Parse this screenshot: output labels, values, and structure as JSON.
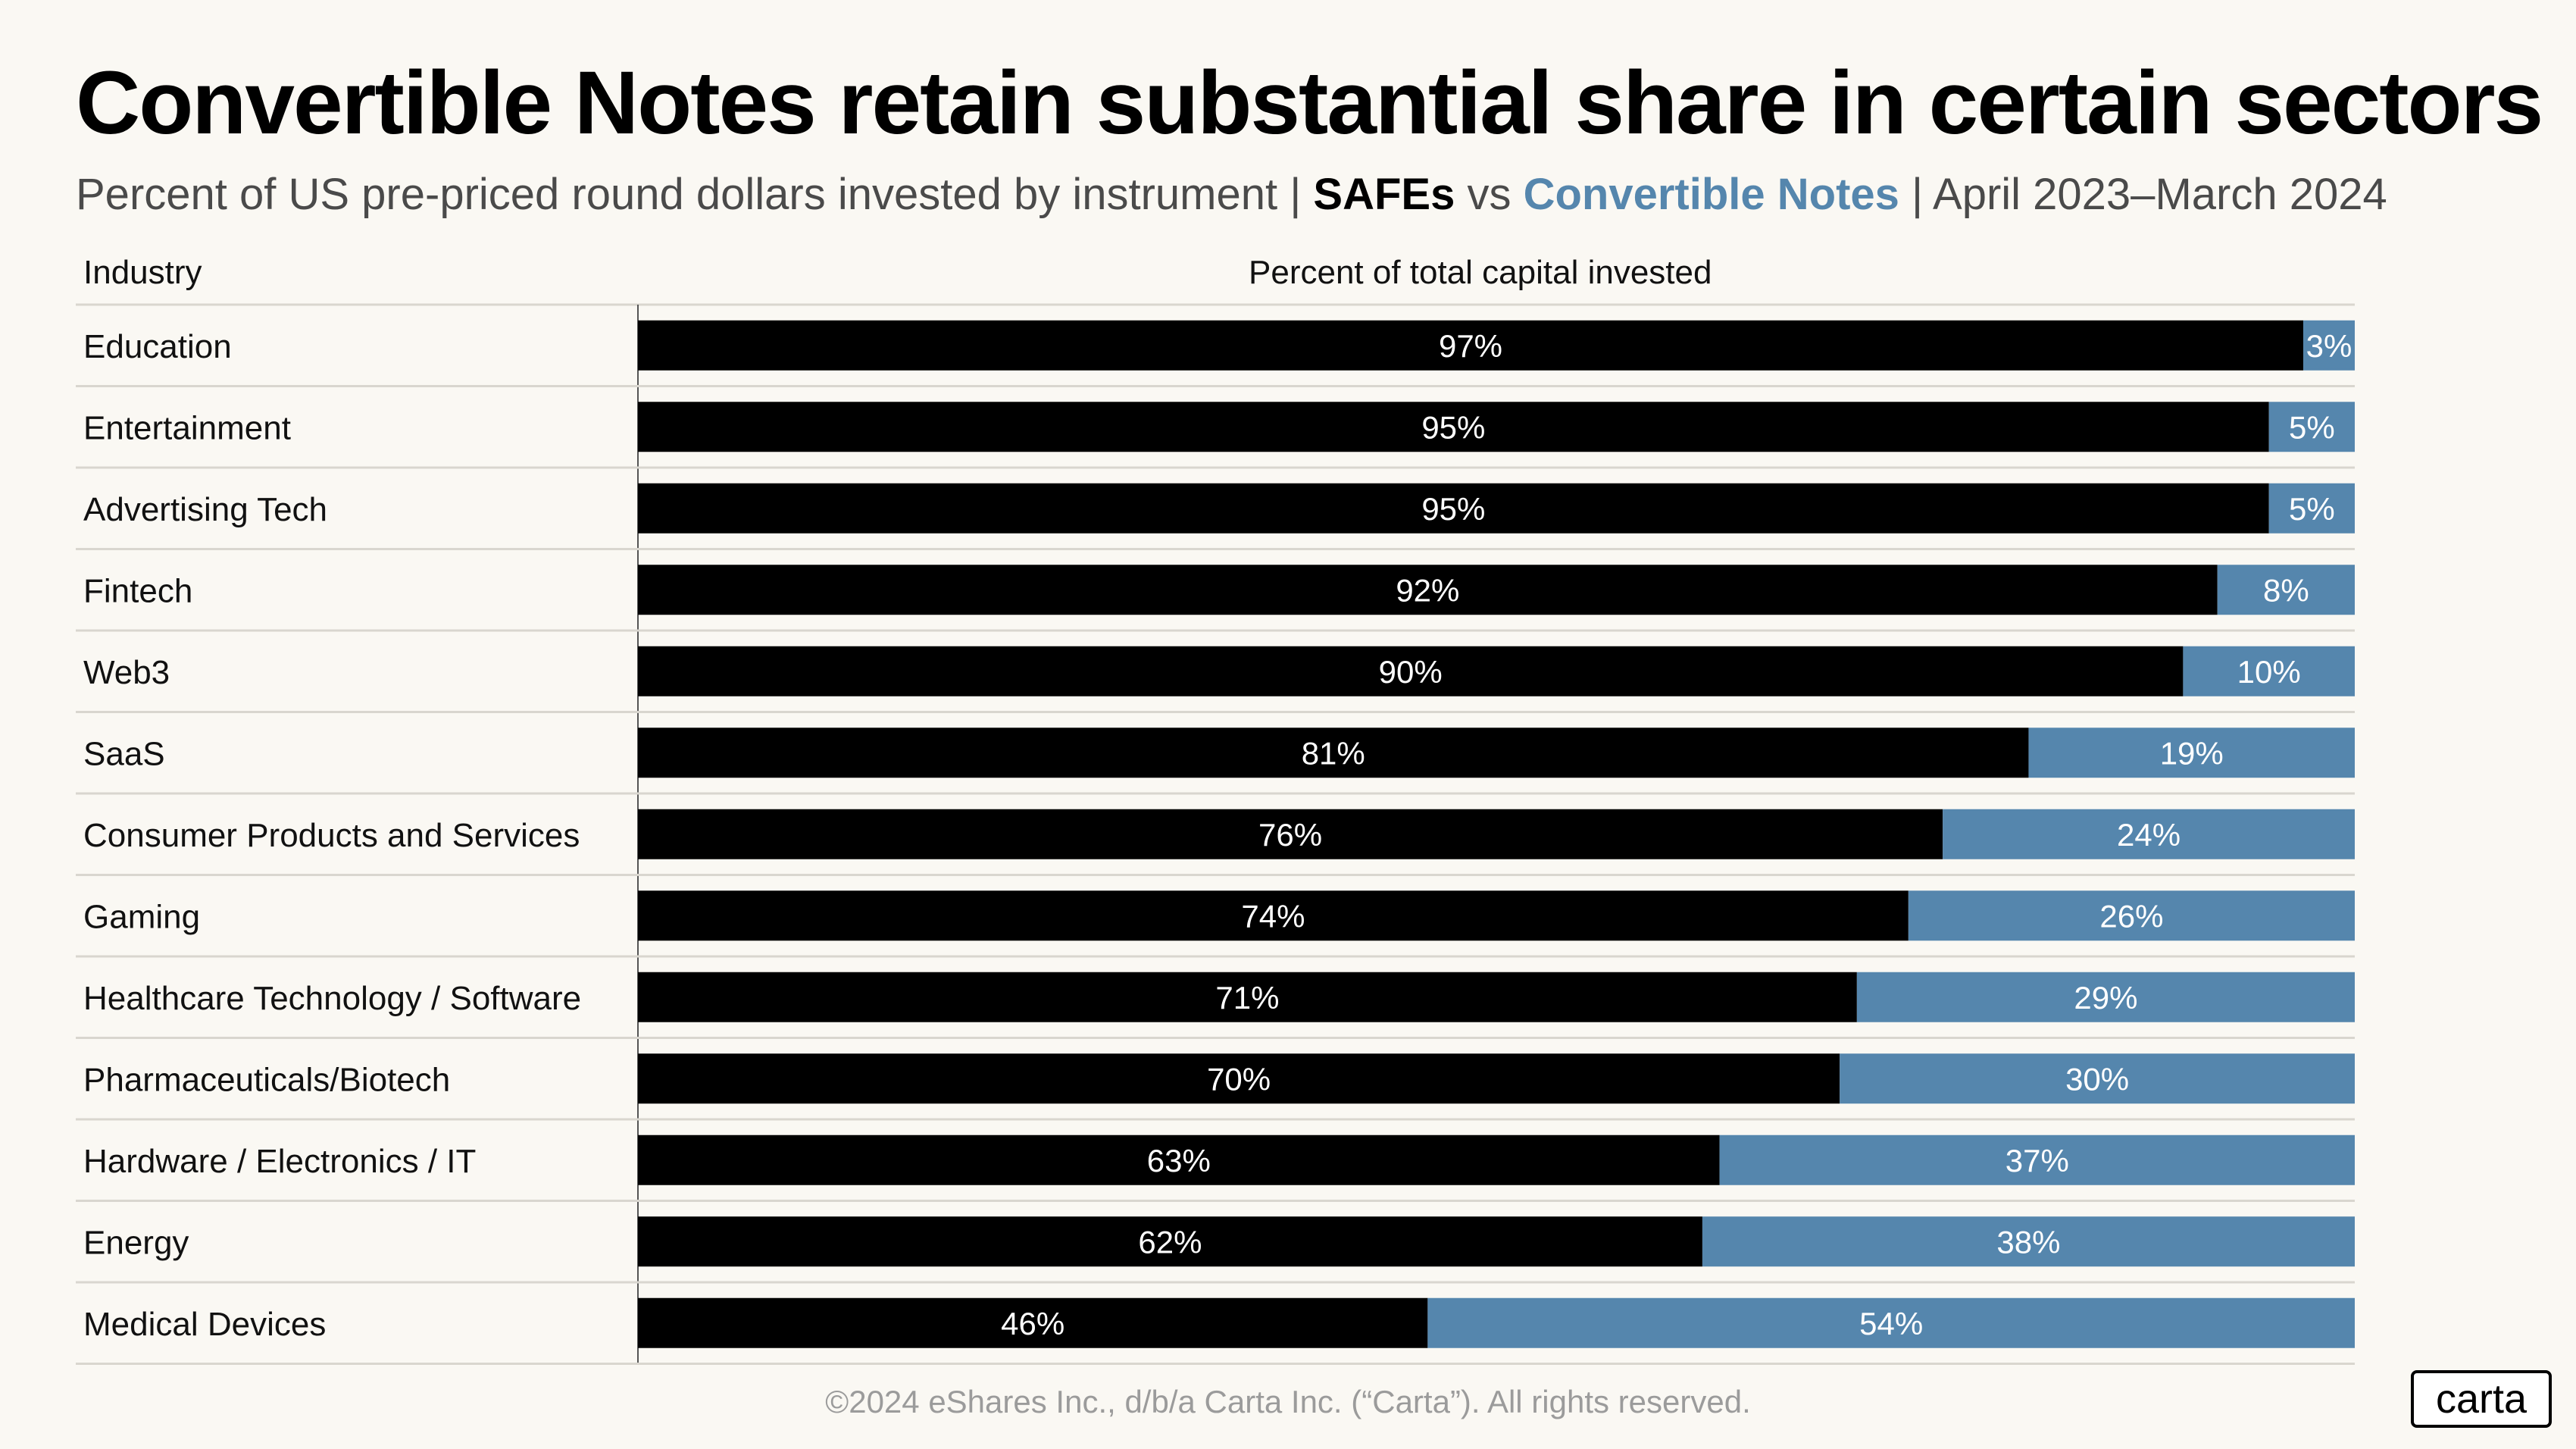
{
  "header": {
    "title": "Convertible Notes retain substantial share in certain sectors",
    "subtitle_pre": "Percent of US pre-priced round dollars invested by instrument | ",
    "subtitle_safe": "SAFEs",
    "subtitle_vs": " vs ",
    "subtitle_cn": "Convertible Notes",
    "subtitle_post": " | April 2023–March 2024"
  },
  "columns": {
    "industry": "Industry",
    "percent": "Percent of total capital invested"
  },
  "colors": {
    "safe": "#000000",
    "convertible_notes": "#5586ad",
    "background": "#faf8f3",
    "gridline": "#d9d6cf"
  },
  "chart_data": {
    "type": "bar",
    "orientation": "horizontal",
    "stacked": true,
    "title": "Convertible Notes retain substantial share in certain sectors",
    "xlabel": "Percent of total capital invested",
    "ylabel": "Industry",
    "xlim": [
      0,
      100
    ],
    "categories": [
      "Education",
      "Entertainment",
      "Advertising Tech",
      "Fintech",
      "Web3",
      "SaaS",
      "Consumer Products and Services",
      "Gaming",
      "Healthcare Technology / Software",
      "Pharmaceuticals/Biotech",
      "Hardware / Electronics / IT",
      "Energy",
      "Medical Devices"
    ],
    "series": [
      {
        "name": "SAFEs",
        "values": [
          97,
          95,
          95,
          92,
          90,
          81,
          76,
          74,
          71,
          70,
          63,
          62,
          46
        ],
        "labels": [
          "97%",
          "95%",
          "95%",
          "92%",
          "90%",
          "81%",
          "76%",
          "74%",
          "71%",
          "70%",
          "63%",
          "62%",
          "46%"
        ]
      },
      {
        "name": "Convertible Notes",
        "values": [
          3,
          5,
          5,
          8,
          10,
          19,
          24,
          26,
          29,
          30,
          37,
          38,
          54
        ],
        "labels": [
          "3%",
          "5%",
          "5%",
          "8%",
          "10%",
          "19%",
          "24%",
          "26%",
          "29%",
          "30%",
          "37%",
          "38%",
          "54%"
        ]
      }
    ]
  },
  "footer": {
    "copyright": "©2024 eShares Inc., d/b/a Carta Inc. (“Carta”). All rights reserved.",
    "logo": "carta"
  }
}
